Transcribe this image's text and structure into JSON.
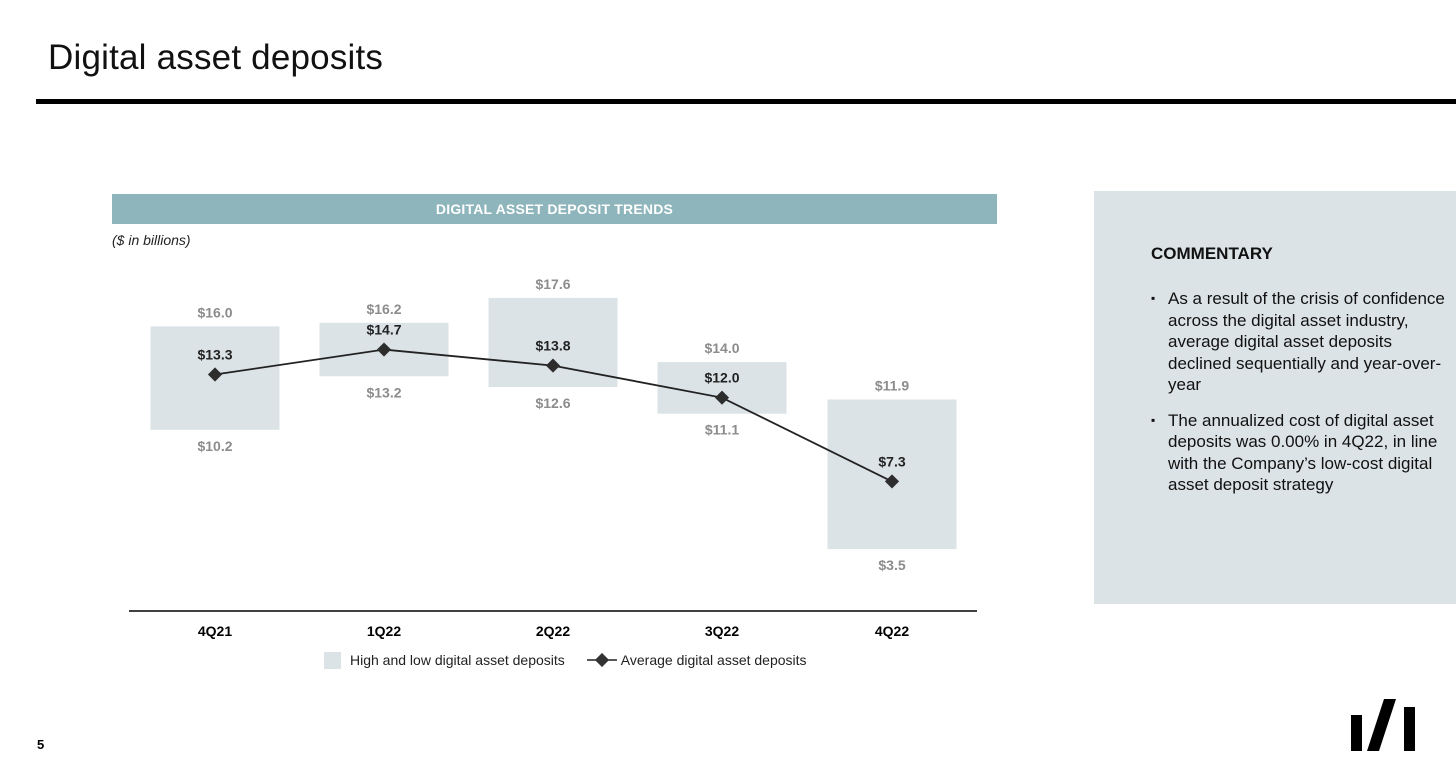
{
  "page": {
    "title": "Digital asset deposits",
    "number": "5"
  },
  "chart_header": "DIGITAL ASSET DEPOSIT TRENDS",
  "units_note": "($ in billions)",
  "chart_data": {
    "type": "line",
    "title": "DIGITAL ASSET DEPOSIT TRENDS",
    "units": "($ in billions)",
    "categories": [
      "4Q21",
      "1Q22",
      "2Q22",
      "3Q22",
      "4Q22"
    ],
    "series": [
      {
        "name": "High and low digital asset deposits",
        "kind": "range-box",
        "high": [
          16.0,
          16.2,
          17.6,
          14.0,
          11.9
        ],
        "low": [
          10.2,
          13.2,
          12.6,
          11.1,
          3.5
        ],
        "high_labels": [
          "$16.0",
          "$16.2",
          "$17.6",
          "$14.0",
          "$11.9"
        ],
        "low_labels": [
          "$10.2",
          "$13.2",
          "$12.6",
          "$11.1",
          "$3.5"
        ],
        "color": "#dce3e6"
      },
      {
        "name": "Average digital asset deposits",
        "kind": "line-diamond",
        "values": [
          13.3,
          14.7,
          13.8,
          12.0,
          7.3
        ],
        "labels": [
          "$13.3",
          "$14.7",
          "$13.8",
          "$12.0",
          "$7.3"
        ],
        "color": "#222222"
      }
    ],
    "grid": false,
    "legend_position": "bottom-center"
  },
  "legend": {
    "range_label": "High and low digital asset deposits",
    "average_label": "Average digital asset deposits"
  },
  "commentary": {
    "title": "COMMENTARY",
    "bullet_glyph": "▪",
    "bullets": [
      "As a result of the crisis of confidence across the digital asset industry, average digital asset deposits declined sequentially and year-over-year",
      "The annualized cost of digital asset deposits was 0.00% in 4Q22, in line with the Company’s low-cost digital asset deposit strategy"
    ]
  },
  "colors": {
    "header_band": "#8db5bb",
    "panel_bg": "#dce3e6",
    "range_label": "#8c8c8c",
    "line": "#222222"
  },
  "logo": {
    "icon": "silvergate-logo-icon"
  }
}
